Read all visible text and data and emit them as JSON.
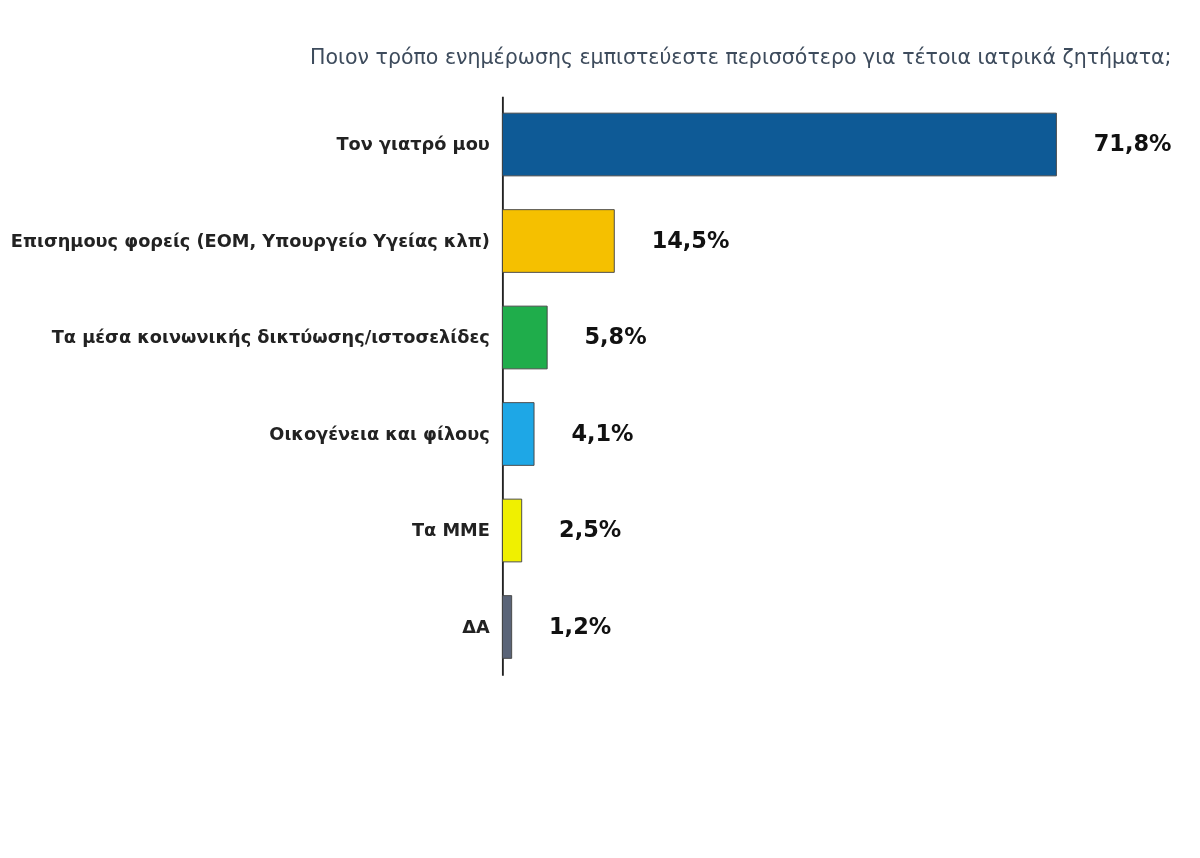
{
  "chart_data": {
    "type": "bar",
    "orientation": "horizontal",
    "title": "Ποιον τρόπο ενημέρωσης εμπιστεύεστε περισσότερο για τέτοια ιατρικά ζητήματα;",
    "categories": [
      "Τον γιατρό μου",
      "Επισημους φορείς (ΕΟΜ, Υπουργείο Υγείας κλπ)",
      "Τα μέσα κοινωνικής δικτύωσης/ιστοσελίδες",
      "Οικογένεια και φίλους",
      "Τα ΜΜΕ",
      "ΔΑ"
    ],
    "values": [
      71.8,
      14.5,
      5.8,
      4.1,
      2.5,
      1.2
    ],
    "value_labels": [
      "71,8%",
      "14,5%",
      "5,8%",
      "4,1%",
      "2,5%",
      "1,2%"
    ],
    "colors": [
      "#0e5a96",
      "#f5c000",
      "#1fad4b",
      "#1ea7e6",
      "#f0f000",
      "#5a6478"
    ],
    "grid": false
  }
}
